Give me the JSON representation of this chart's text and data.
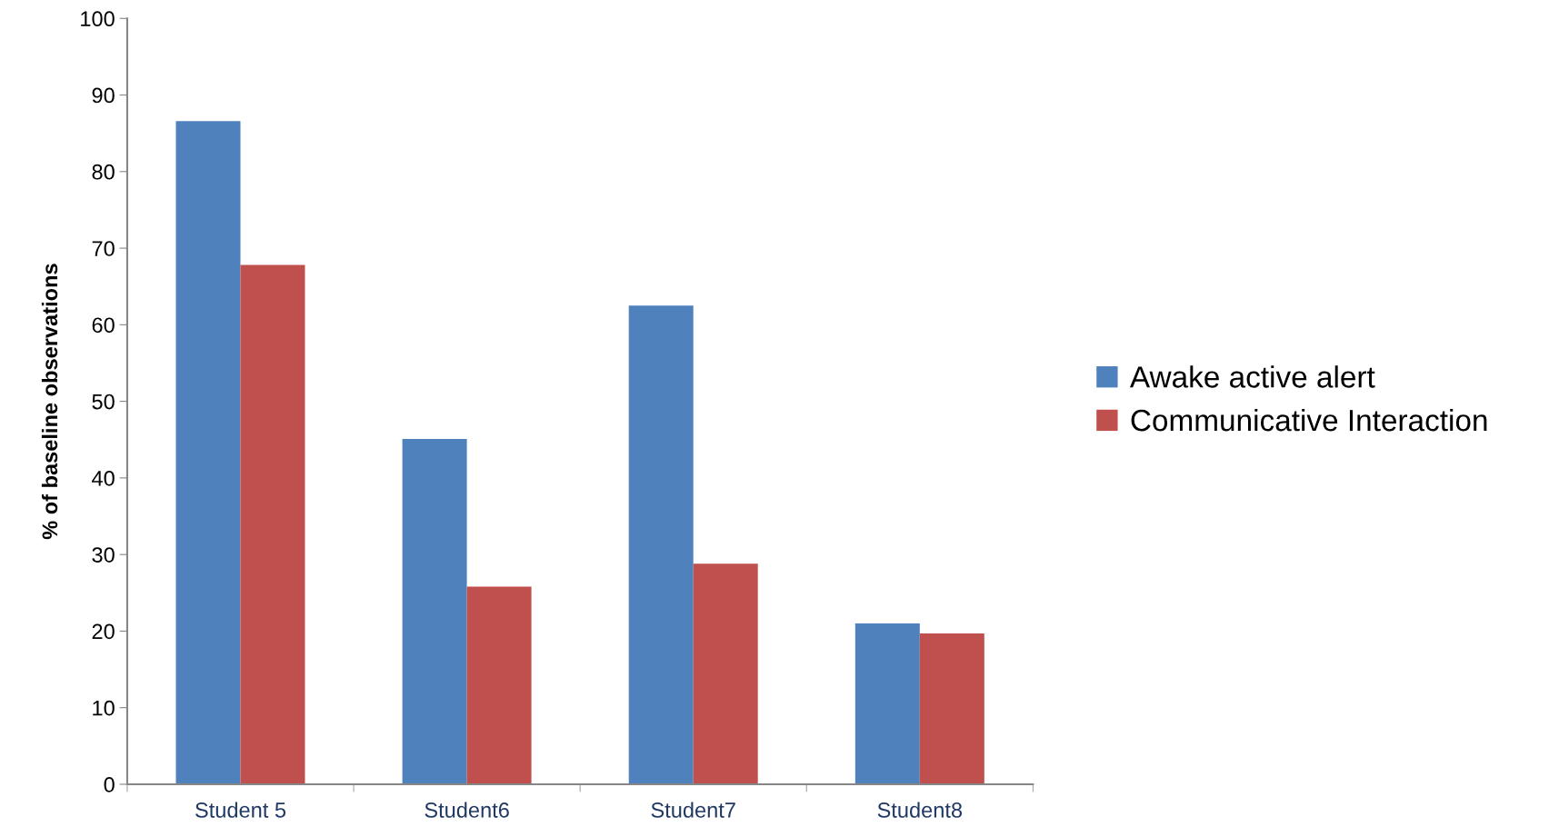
{
  "chart_data": {
    "type": "bar",
    "ylabel": "% of baseline observations",
    "categories": [
      "Student 5",
      "Student6",
      "Student7",
      "Student8"
    ],
    "series": [
      {
        "name": "Awake active alert",
        "color": "#4f81bd",
        "values": [
          86.6,
          45.1,
          62.5,
          21.0
        ]
      },
      {
        "name": "Communicative Interaction",
        "color": "#c0504d",
        "values": [
          67.8,
          25.8,
          28.8,
          19.7
        ]
      }
    ],
    "ylim": [
      0,
      100
    ],
    "yticks": [
      0,
      10,
      20,
      30,
      40,
      50,
      60,
      70,
      80,
      90,
      100
    ],
    "grid": false,
    "legend": "right"
  }
}
